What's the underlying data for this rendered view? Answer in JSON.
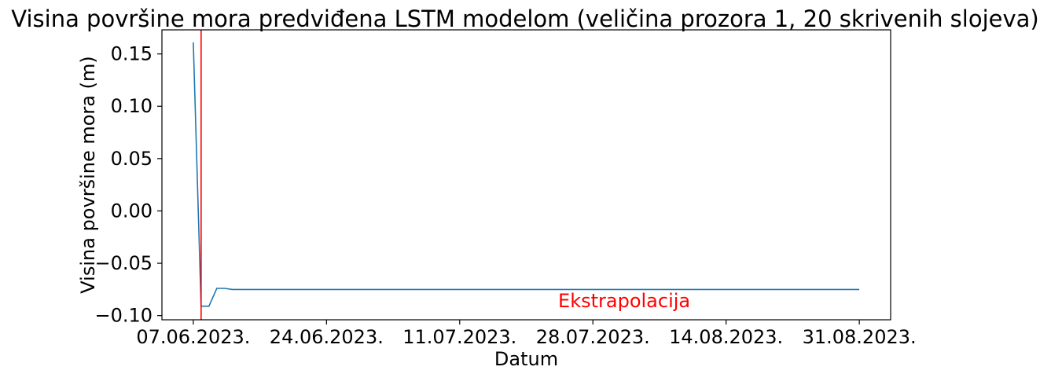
{
  "chart_data": {
    "type": "line",
    "title": "Visina površine mora predviđena LSTM modelom (veličina prozora 1, 20 skrivenih slojeva)",
    "xlabel": "Datum",
    "ylabel": "Visina površine mora (m)",
    "x_ticks": [
      "07.06.2023.",
      "24.06.2023.",
      "11.07.2023.",
      "28.07.2023.",
      "14.08.2023.",
      "31.08.2023."
    ],
    "y_ticks": [
      "0.15",
      "0.10",
      "0.05",
      "0.00",
      "−0.05",
      "−0.10"
    ],
    "ylim": [
      -0.104,
      0.173
    ],
    "xlim": [
      "2023-06-03",
      "2023-09-04"
    ],
    "grid": false,
    "series": [
      {
        "color": "#1f77b4",
        "points": [
          {
            "x": "2023-06-07",
            "y": 0.161
          },
          {
            "x": "2023-06-08",
            "y": -0.091
          },
          {
            "x": "2023-06-09",
            "y": -0.091
          },
          {
            "x": "2023-06-10",
            "y": -0.074
          },
          {
            "x": "2023-06-11",
            "y": -0.074
          },
          {
            "x": "2023-06-12",
            "y": -0.075
          },
          {
            "x": "2023-06-13",
            "y": -0.075
          },
          {
            "x": "2023-08-31",
            "y": -0.075
          }
        ]
      }
    ],
    "vline": {
      "x": "2023-06-08",
      "color": "#ff0000"
    },
    "annotation": {
      "text": "Ekstrapolacija",
      "x": "2023-08-01",
      "y": -0.086,
      "color": "#ff0000"
    }
  }
}
